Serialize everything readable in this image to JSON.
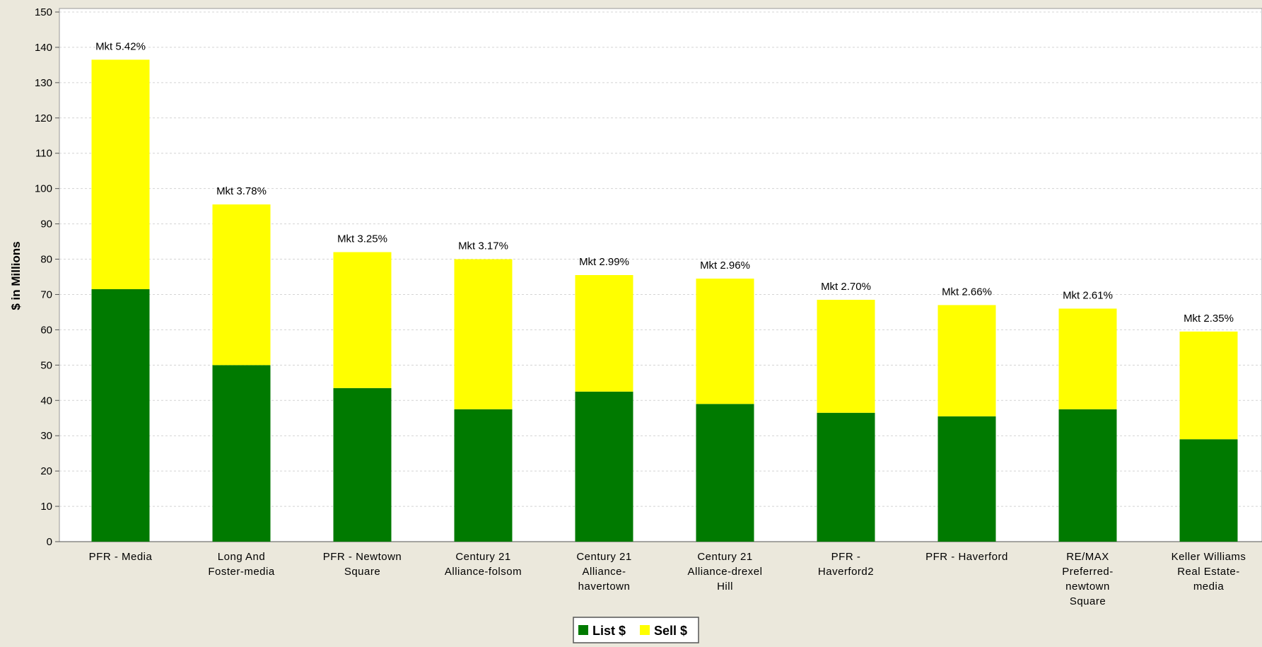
{
  "chart_data": {
    "type": "bar",
    "stacked": true,
    "title": "",
    "xlabel": "",
    "ylabel": "$ in Millions",
    "ylim": [
      0,
      150
    ],
    "yticks": [
      0,
      10,
      20,
      30,
      40,
      50,
      60,
      70,
      80,
      90,
      100,
      110,
      120,
      130,
      140,
      150
    ],
    "grid": true,
    "legend_position": "bottom",
    "categories": [
      [
        "PFR - Media"
      ],
      [
        "Long And",
        "Foster-media"
      ],
      [
        "PFR - Newtown",
        "Square"
      ],
      [
        "Century 21",
        "Alliance-folsom"
      ],
      [
        "Century 21",
        "Alliance-",
        "havertown"
      ],
      [
        "Century 21",
        "Alliance-drexel",
        "Hill"
      ],
      [
        "PFR -",
        "Haverford2"
      ],
      [
        "PFR - Haverford"
      ],
      [
        "RE/MAX",
        "Preferred-",
        "newtown",
        "Square"
      ],
      [
        "Keller Williams",
        "Real Estate-",
        "media"
      ]
    ],
    "series": [
      {
        "name": "List $",
        "color": "#007a00",
        "values": [
          71.5,
          50,
          43.5,
          37.5,
          42.5,
          39,
          36.5,
          35.5,
          37.5,
          29
        ]
      },
      {
        "name": "Sell $",
        "color": "#ffff00",
        "values": [
          65,
          45.5,
          38.5,
          42.5,
          33,
          35.5,
          32,
          31.5,
          28.5,
          30.5
        ]
      }
    ],
    "annotations": [
      "Mkt 5.42%",
      "Mkt 3.78%",
      "Mkt 3.25%",
      "Mkt 3.17%",
      "Mkt 2.99%",
      "Mkt 2.96%",
      "Mkt 2.70%",
      "Mkt 2.66%",
      "Mkt 2.61%",
      "Mkt 2.35%"
    ]
  }
}
